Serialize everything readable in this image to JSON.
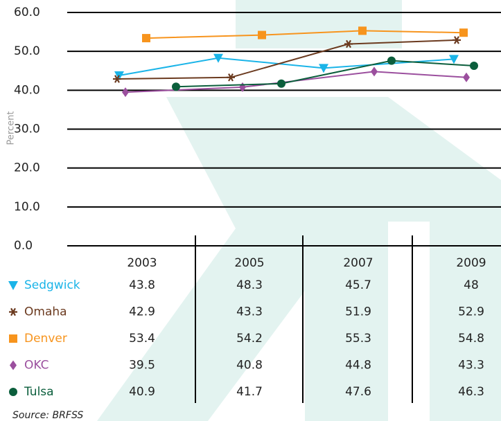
{
  "chart_data": {
    "type": "line",
    "y_label": "Percent",
    "categories": [
      "2003",
      "2005",
      "2007",
      "2009"
    ],
    "ylim": [
      0,
      60
    ],
    "yticks": [
      {
        "value": 0,
        "label": "0.0"
      },
      {
        "value": 10,
        "label": "10.0"
      },
      {
        "value": 20,
        "label": "20.0"
      },
      {
        "value": 30,
        "label": "30.0"
      },
      {
        "value": 40,
        "label": "40.0"
      },
      {
        "value": 50,
        "label": "50.0"
      },
      {
        "value": 60,
        "label": "60.0"
      }
    ],
    "grid": true,
    "series": [
      {
        "name": "Sedgwick",
        "color": "#1ab4e8",
        "marker": "triangle-down",
        "values": [
          43.8,
          48.3,
          45.7,
          48
        ]
      },
      {
        "name": "Omaha",
        "color": "#6b3a1f",
        "marker": "asterisk",
        "values": [
          42.9,
          43.3,
          51.9,
          52.9
        ]
      },
      {
        "name": "Denver",
        "color": "#f7941d",
        "marker": "square",
        "values": [
          53.4,
          54.2,
          55.3,
          54.8
        ]
      },
      {
        "name": "OKC",
        "color": "#9b4f9e",
        "marker": "diamond",
        "values": [
          39.5,
          40.8,
          44.8,
          43.3
        ]
      },
      {
        "name": "Tulsa",
        "color": "#0b5e3c",
        "marker": "circle",
        "values": [
          40.9,
          41.7,
          47.6,
          46.3
        ]
      }
    ],
    "source": "Source: BRFSS"
  }
}
